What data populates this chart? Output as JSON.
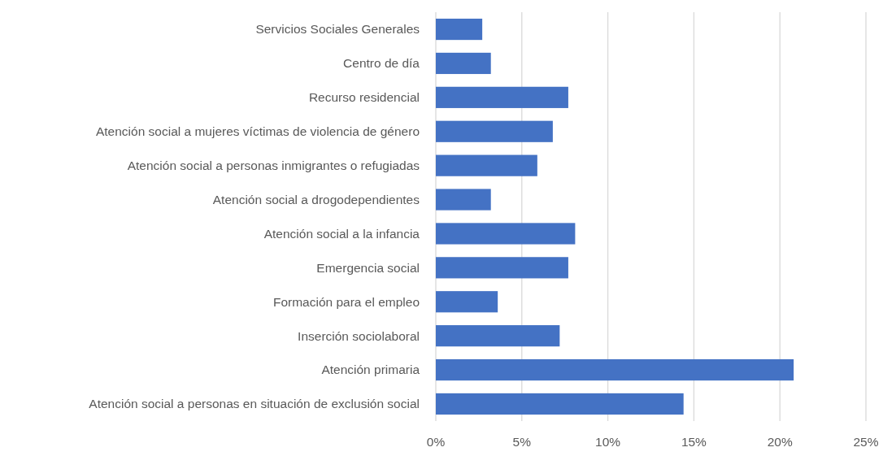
{
  "chart_data": {
    "type": "bar",
    "orientation": "horizontal",
    "categories": [
      "Servicios Sociales Generales",
      "Centro de día",
      "Recurso residencial",
      "Atención social a mujeres víctimas de violencia de género",
      "Atención social a personas inmigrantes o refugiadas",
      "Atención social a drogodependientes",
      "Atención social a la infancia",
      "Emergencia social",
      "Formación para el empleo",
      "Inserción sociolaboral",
      "Atención primaria",
      "Atención social a personas en situación de exclusión social"
    ],
    "values": [
      2.7,
      3.2,
      7.7,
      6.8,
      5.9,
      3.2,
      8.1,
      7.7,
      3.6,
      7.2,
      20.8,
      14.4
    ],
    "color": "#4472c4",
    "xlim": [
      0,
      25
    ],
    "xticks": [
      {
        "value": 0,
        "label": "0%"
      },
      {
        "value": 5,
        "label": "5%"
      },
      {
        "value": 10,
        "label": "10%"
      },
      {
        "value": 15,
        "label": "15%"
      },
      {
        "value": 20,
        "label": "20%"
      },
      {
        "value": 25,
        "label": "25%"
      }
    ],
    "grid": "x"
  }
}
